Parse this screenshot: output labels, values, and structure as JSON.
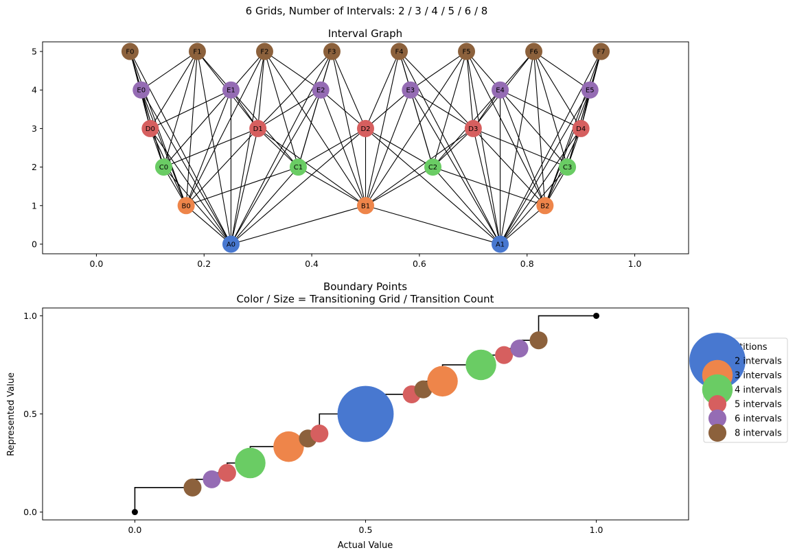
{
  "figure": {
    "suptitle": "6 Grids, Number of Intervals: 2 / 3 / 4 / 5 / 6 / 8"
  },
  "colors": {
    "A": "#4878d0",
    "B": "#ee854a",
    "C": "#6acc64",
    "D": "#d65f5f",
    "E": "#956cb4",
    "F": "#8c613c",
    "line": "#000000",
    "endpoint": "#000000"
  },
  "chart_data": [
    {
      "type": "network",
      "title": "Interval Graph",
      "xlim": [
        -0.1,
        1.1
      ],
      "ylim": [
        -0.25,
        5.25
      ],
      "x_ticks": [
        "0.0",
        "0.2",
        "0.4",
        "0.6",
        "0.8",
        "1.0"
      ],
      "x_tick_values": [
        0.0,
        0.2,
        0.4,
        0.6,
        0.8,
        1.0
      ],
      "y_ticks": [
        "0",
        "1",
        "2",
        "3",
        "4",
        "5"
      ],
      "y_tick_values": [
        0,
        1,
        2,
        3,
        4,
        5
      ],
      "grids": [
        {
          "level": 0,
          "prefix": "A",
          "intervals": 2
        },
        {
          "level": 1,
          "prefix": "B",
          "intervals": 3
        },
        {
          "level": 2,
          "prefix": "C",
          "intervals": 4
        },
        {
          "level": 3,
          "prefix": "D",
          "intervals": 5
        },
        {
          "level": 4,
          "prefix": "E",
          "intervals": 6
        },
        {
          "level": 5,
          "prefix": "F",
          "intervals": 8
        }
      ],
      "nodes": [
        {
          "label": "A0",
          "x": 0.25,
          "y": 0,
          "group": "A"
        },
        {
          "label": "A1",
          "x": 0.75,
          "y": 0,
          "group": "A"
        },
        {
          "label": "B0",
          "x": 0.1667,
          "y": 1,
          "group": "B"
        },
        {
          "label": "B1",
          "x": 0.5,
          "y": 1,
          "group": "B"
        },
        {
          "label": "B2",
          "x": 0.8333,
          "y": 1,
          "group": "B"
        },
        {
          "label": "C0",
          "x": 0.125,
          "y": 2,
          "group": "C"
        },
        {
          "label": "C1",
          "x": 0.375,
          "y": 2,
          "group": "C"
        },
        {
          "label": "C2",
          "x": 0.625,
          "y": 2,
          "group": "C"
        },
        {
          "label": "C3",
          "x": 0.875,
          "y": 2,
          "group": "C"
        },
        {
          "label": "D0",
          "x": 0.1,
          "y": 3,
          "group": "D"
        },
        {
          "label": "D1",
          "x": 0.3,
          "y": 3,
          "group": "D"
        },
        {
          "label": "D2",
          "x": 0.5,
          "y": 3,
          "group": "D"
        },
        {
          "label": "D3",
          "x": 0.7,
          "y": 3,
          "group": "D"
        },
        {
          "label": "D4",
          "x": 0.9,
          "y": 3,
          "group": "D"
        },
        {
          "label": "E0",
          "x": 0.0833,
          "y": 4,
          "group": "E"
        },
        {
          "label": "E1",
          "x": 0.25,
          "y": 4,
          "group": "E"
        },
        {
          "label": "E2",
          "x": 0.4167,
          "y": 4,
          "group": "E"
        },
        {
          "label": "E3",
          "x": 0.5833,
          "y": 4,
          "group": "E"
        },
        {
          "label": "E4",
          "x": 0.75,
          "y": 4,
          "group": "E"
        },
        {
          "label": "E5",
          "x": 0.9167,
          "y": 4,
          "group": "E"
        },
        {
          "label": "F0",
          "x": 0.0625,
          "y": 5,
          "group": "F"
        },
        {
          "label": "F1",
          "x": 0.1875,
          "y": 5,
          "group": "F"
        },
        {
          "label": "F2",
          "x": 0.3125,
          "y": 5,
          "group": "F"
        },
        {
          "label": "F3",
          "x": 0.4375,
          "y": 5,
          "group": "F"
        },
        {
          "label": "F4",
          "x": 0.5625,
          "y": 5,
          "group": "F"
        },
        {
          "label": "F5",
          "x": 0.6875,
          "y": 5,
          "group": "F"
        },
        {
          "label": "F6",
          "x": 0.8125,
          "y": 5,
          "group": "F"
        },
        {
          "label": "F7",
          "x": 0.9375,
          "y": 5,
          "group": "F"
        }
      ],
      "edges": "an edge joins two nodes on different levels whose intervals overlap"
    },
    {
      "type": "scatter",
      "title": "Boundary Points",
      "subtitle": "Color / Size = Transitioning Grid / Transition Count",
      "xlabel": "Actual Value",
      "ylabel": "Represented Value",
      "xlim": [
        -0.2,
        1.2
      ],
      "ylim": [
        -0.04,
        1.04
      ],
      "x_ticks": [
        "0.0",
        "0.5",
        "1.0"
      ],
      "x_tick_values": [
        0.0,
        0.5,
        1.0
      ],
      "y_ticks": [
        "0.0",
        "0.5",
        "1.0"
      ],
      "y_tick_values": [
        0.0,
        0.5,
        1.0
      ],
      "legend": {
        "title": "Partitions",
        "placement": "outside-right",
        "entries": [
          {
            "label": "2 intervals",
            "group": "A"
          },
          {
            "label": "3 intervals",
            "group": "B"
          },
          {
            "label": "4 intervals",
            "group": "C"
          },
          {
            "label": "5 intervals",
            "group": "D"
          },
          {
            "label": "6 intervals",
            "group": "E"
          },
          {
            "label": "8 intervals",
            "group": "F"
          }
        ]
      },
      "step_line": [
        [
          0,
          0
        ],
        [
          0,
          0.125
        ],
        [
          0.125,
          0.125
        ],
        [
          0.125,
          0.1667
        ],
        [
          0.1667,
          0.1667
        ],
        [
          0.1667,
          0.2
        ],
        [
          0.2,
          0.2
        ],
        [
          0.2,
          0.25
        ],
        [
          0.25,
          0.25
        ],
        [
          0.25,
          0.3333
        ],
        [
          0.3333,
          0.3333
        ],
        [
          0.3333,
          0.375
        ],
        [
          0.375,
          0.375
        ],
        [
          0.375,
          0.4
        ],
        [
          0.4,
          0.4
        ],
        [
          0.4,
          0.5
        ],
        [
          0.5,
          0.5
        ],
        [
          0.5,
          0.6
        ],
        [
          0.6,
          0.6
        ],
        [
          0.6,
          0.625
        ],
        [
          0.625,
          0.625
        ],
        [
          0.625,
          0.6667
        ],
        [
          0.6667,
          0.6667
        ],
        [
          0.6667,
          0.75
        ],
        [
          0.75,
          0.75
        ],
        [
          0.75,
          0.8
        ],
        [
          0.8,
          0.8
        ],
        [
          0.8,
          0.8333
        ],
        [
          0.8333,
          0.8333
        ],
        [
          0.8333,
          0.875
        ],
        [
          0.875,
          0.875
        ],
        [
          0.875,
          1.0
        ],
        [
          1.0,
          1.0
        ]
      ],
      "points": [
        {
          "x": 0.125,
          "y": 0.125,
          "group": "F",
          "transitions": 1
        },
        {
          "x": 0.1667,
          "y": 0.1667,
          "group": "E",
          "transitions": 1
        },
        {
          "x": 0.2,
          "y": 0.2,
          "group": "D",
          "transitions": 1
        },
        {
          "x": 0.25,
          "y": 0.25,
          "group": "C",
          "transitions": 3
        },
        {
          "x": 0.3333,
          "y": 0.3333,
          "group": "B",
          "transitions": 3
        },
        {
          "x": 0.375,
          "y": 0.375,
          "group": "F",
          "transitions": 1
        },
        {
          "x": 0.4,
          "y": 0.4,
          "group": "D",
          "transitions": 1
        },
        {
          "x": 0.5,
          "y": 0.5,
          "group": "A",
          "transitions": 10
        },
        {
          "x": 0.6,
          "y": 0.6,
          "group": "D",
          "transitions": 1
        },
        {
          "x": 0.625,
          "y": 0.625,
          "group": "F",
          "transitions": 1
        },
        {
          "x": 0.6667,
          "y": 0.6667,
          "group": "B",
          "transitions": 3
        },
        {
          "x": 0.75,
          "y": 0.75,
          "group": "C",
          "transitions": 3
        },
        {
          "x": 0.8,
          "y": 0.8,
          "group": "D",
          "transitions": 1
        },
        {
          "x": 0.8333,
          "y": 0.8333,
          "group": "E",
          "transitions": 1
        },
        {
          "x": 0.875,
          "y": 0.875,
          "group": "F",
          "transitions": 1
        }
      ],
      "endpoints": [
        {
          "x": 0.0,
          "y": 0.0
        },
        {
          "x": 1.0,
          "y": 1.0
        }
      ]
    }
  ]
}
